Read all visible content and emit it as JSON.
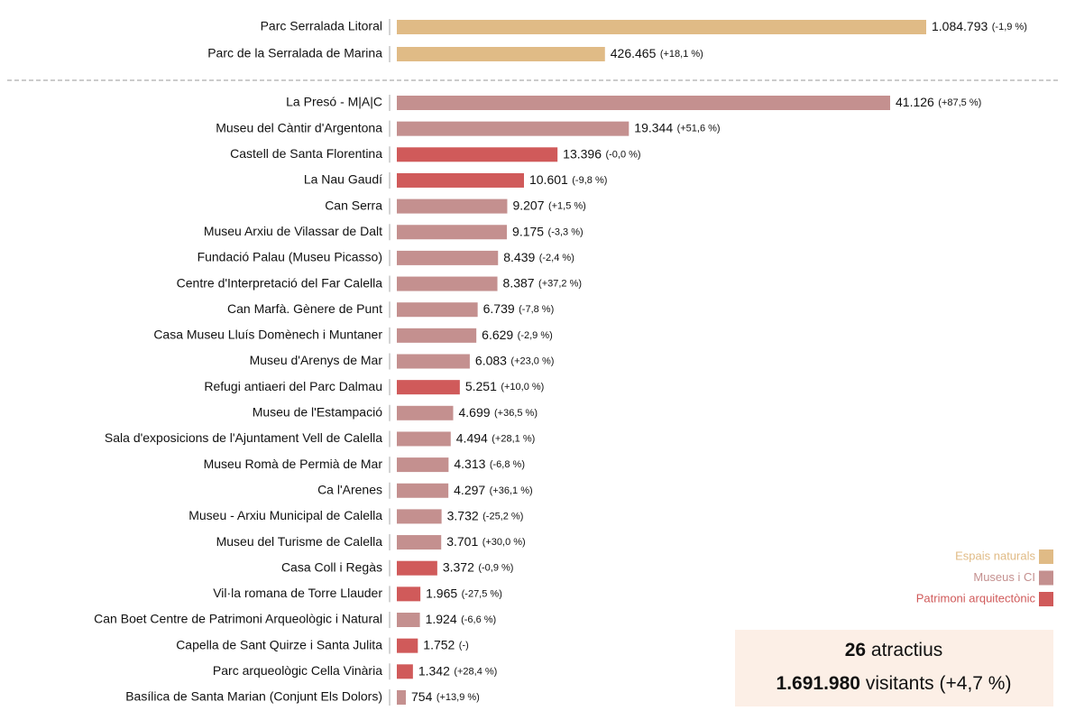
{
  "chart_data": [
    {
      "type": "bar",
      "orientation": "horizontal",
      "categories": [
        "Parc Serralada Litoral",
        "Parc de la Serralada de Marina"
      ],
      "values": [
        1084793,
        426465
      ],
      "value_labels": [
        "1.084.793",
        "426.465"
      ],
      "changes": [
        "(-1,9 %)",
        "(+18,1 %)"
      ],
      "groups": [
        0,
        0
      ]
    },
    {
      "type": "bar",
      "orientation": "horizontal",
      "categories": [
        "La Presó - M|A|C",
        "Museu del Càntir d'Argentona",
        "Castell de Santa Florentina",
        "La Nau Gaudí",
        "Can Serra",
        "Museu Arxiu de Vilassar de Dalt",
        "Fundació Palau (Museu Picasso)",
        "Centre d'Interpretació del Far Calella",
        "Can Marfà. Gènere de Punt",
        "Casa Museu Lluís Domènech i Muntaner",
        "Museu d'Arenys de Mar",
        "Refugi antiaeri del Parc Dalmau",
        "Museu de l'Estampació",
        "Sala d'exposicions de l'Ajuntament Vell de Calella",
        "Museu Romà de Permià de Mar",
        "Ca l'Arenes",
        "Museu - Arxiu Municipal de Calella",
        "Museu del Turisme de Calella",
        "Casa Coll i Regàs",
        "Vil·la romana de Torre Llauder",
        "Can Boet Centre de Patrimoni Arqueològic i Natural",
        "Capella de Sant Quirze i Santa Julita",
        "Parc arqueològic Cella Vinària",
        "Basílica de Santa Marian (Conjunt Els Dolors)"
      ],
      "values": [
        41126,
        19344,
        13396,
        10601,
        9207,
        9175,
        8439,
        8387,
        6739,
        6629,
        6083,
        5251,
        4699,
        4494,
        4313,
        4297,
        3732,
        3701,
        3372,
        1965,
        1924,
        1752,
        1342,
        754
      ],
      "value_labels": [
        "41.126",
        "19.344",
        "13.396",
        "10.601",
        "9.207",
        "9.175",
        "8.439",
        "8.387",
        "6.739",
        "6.629",
        "6.083",
        "5.251",
        "4.699",
        "4.494",
        "4.313",
        "4.297",
        "3.732",
        "3.701",
        "3.372",
        "1.965",
        "1.924",
        "1.752",
        "1.342",
        "754"
      ],
      "changes": [
        "(+87,5 %)",
        "(+51,6 %)",
        "(-0,0 %)",
        "(-9,8 %)",
        "(+1,5 %)",
        "(-3,3 %)",
        "(-2,4 %)",
        "(+37,2 %)",
        "(-7,8 %)",
        "(-2,9 %)",
        "(+23,0 %)",
        "(+10,0 %)",
        "(+36,5 %)",
        "(+28,1 %)",
        "(-6,8 %)",
        "(+36,1 %)",
        "(-25,2 %)",
        "(+30,0 %)",
        "(-0,9 %)",
        "(-27,5 %)",
        "(-6,6 %)",
        "(-)",
        "(+28,4 %)",
        "(+13,9 %)"
      ],
      "groups": [
        1,
        1,
        2,
        2,
        1,
        1,
        1,
        1,
        1,
        1,
        1,
        2,
        1,
        1,
        1,
        1,
        1,
        1,
        2,
        2,
        1,
        2,
        2,
        1
      ]
    }
  ],
  "legend": [
    {
      "name": "Espais naturals",
      "color": "#e0bb86"
    },
    {
      "name": "Museus i CI",
      "color": "#c4908f"
    },
    {
      "name": "Patrimoni arquitectònic",
      "color": "#d05a5a"
    }
  ],
  "summary": {
    "count": 26,
    "count_label": "atractius",
    "total": "1.691.980",
    "total_label": "visitants",
    "change": "(+4,7 %)"
  }
}
